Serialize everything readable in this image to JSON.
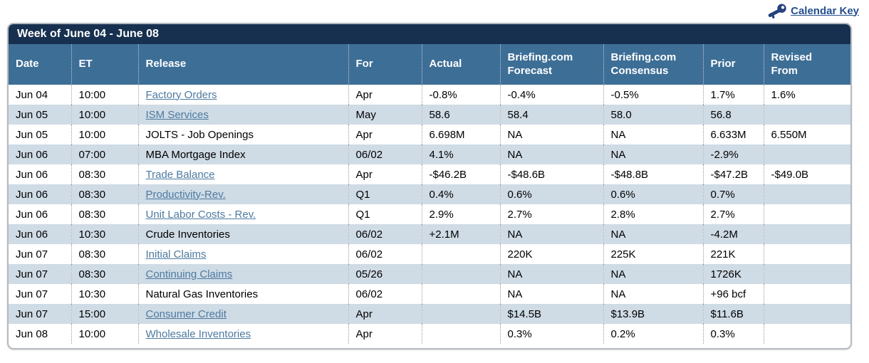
{
  "calendar_key": {
    "label": "Calendar Key",
    "icon": "key-icon"
  },
  "colors": {
    "title_bar_bg": "#17304f",
    "header_bg": "#3d6e96",
    "stripe_bg": "#cfdbe5",
    "release_link": "#4d7aa0",
    "calendar_key_link": "#26508f"
  },
  "table": {
    "title": "Week of June 04 - June 08",
    "columns": [
      {
        "id": "date",
        "label": "Date"
      },
      {
        "id": "et",
        "label": "ET"
      },
      {
        "id": "release",
        "label": "Release"
      },
      {
        "id": "for",
        "label": "For"
      },
      {
        "id": "actual",
        "label": "Actual"
      },
      {
        "id": "forecast",
        "label": "Briefing.com\nForecast"
      },
      {
        "id": "consensus",
        "label": "Briefing.com\nConsensus"
      },
      {
        "id": "prior",
        "label": "Prior"
      },
      {
        "id": "revised_from",
        "label": "Revised\nFrom"
      }
    ],
    "rows": [
      {
        "date": "Jun 04",
        "et": "10:00",
        "release": "Factory Orders",
        "is_link": true,
        "for": "Apr",
        "actual": "-0.8%",
        "forecast": "-0.4%",
        "consensus": "-0.5%",
        "prior": "1.7%",
        "revised_from": "1.6%"
      },
      {
        "date": "Jun 05",
        "et": "10:00",
        "release": "ISM Services",
        "is_link": true,
        "for": "May",
        "actual": "58.6",
        "forecast": "58.4",
        "consensus": "58.0",
        "prior": "56.8",
        "revised_from": ""
      },
      {
        "date": "Jun 05",
        "et": "10:00",
        "release": "JOLTS - Job Openings",
        "is_link": false,
        "for": "Apr",
        "actual": "6.698M",
        "forecast": "NA",
        "consensus": "NA",
        "prior": "6.633M",
        "revised_from": "6.550M"
      },
      {
        "date": "Jun 06",
        "et": "07:00",
        "release": "MBA Mortgage Index",
        "is_link": false,
        "for": "06/02",
        "actual": "4.1%",
        "forecast": "NA",
        "consensus": "NA",
        "prior": "-2.9%",
        "revised_from": ""
      },
      {
        "date": "Jun 06",
        "et": "08:30",
        "release": "Trade Balance",
        "is_link": true,
        "for": "Apr",
        "actual": "-$46.2B",
        "forecast": "-$48.6B",
        "consensus": "-$48.8B",
        "prior": "-$47.2B",
        "revised_from": "-$49.0B"
      },
      {
        "date": "Jun 06",
        "et": "08:30",
        "release": "Productivity-Rev.",
        "is_link": true,
        "for": "Q1",
        "actual": "0.4%",
        "forecast": "0.6%",
        "consensus": "0.6%",
        "prior": "0.7%",
        "revised_from": ""
      },
      {
        "date": "Jun 06",
        "et": "08:30",
        "release": "Unit Labor Costs - Rev.",
        "is_link": true,
        "for": "Q1",
        "actual": "2.9%",
        "forecast": "2.7%",
        "consensus": "2.8%",
        "prior": "2.7%",
        "revised_from": ""
      },
      {
        "date": "Jun 06",
        "et": "10:30",
        "release": "Crude Inventories",
        "is_link": false,
        "for": "06/02",
        "actual": "+2.1M",
        "forecast": "NA",
        "consensus": "NA",
        "prior": "-4.2M",
        "revised_from": ""
      },
      {
        "date": "Jun 07",
        "et": "08:30",
        "release": "Initial Claims",
        "is_link": true,
        "for": "06/02",
        "actual": "",
        "forecast": "220K",
        "consensus": "225K",
        "prior": "221K",
        "revised_from": ""
      },
      {
        "date": "Jun 07",
        "et": "08:30",
        "release": "Continuing Claims",
        "is_link": true,
        "for": "05/26",
        "actual": "",
        "forecast": "NA",
        "consensus": "NA",
        "prior": "1726K",
        "revised_from": ""
      },
      {
        "date": "Jun 07",
        "et": "10:30",
        "release": "Natural Gas Inventories",
        "is_link": false,
        "for": "06/02",
        "actual": "",
        "forecast": "NA",
        "consensus": "NA",
        "prior": "+96 bcf",
        "revised_from": ""
      },
      {
        "date": "Jun 07",
        "et": "15:00",
        "release": "Consumer Credit",
        "is_link": true,
        "for": "Apr",
        "actual": "",
        "forecast": "$14.5B",
        "consensus": "$13.9B",
        "prior": "$11.6B",
        "revised_from": ""
      },
      {
        "date": "Jun 08",
        "et": "10:00",
        "release": "Wholesale Inventories",
        "is_link": true,
        "for": "Apr",
        "actual": "",
        "forecast": "0.3%",
        "consensus": "0.2%",
        "prior": "0.3%",
        "revised_from": ""
      }
    ]
  }
}
